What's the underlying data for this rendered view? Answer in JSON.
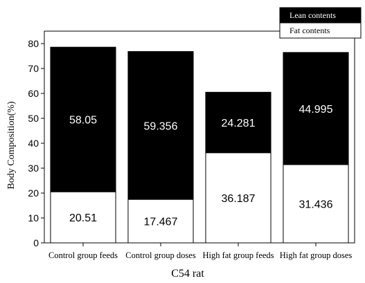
{
  "chart_data": {
    "type": "bar",
    "stacked": true,
    "categories": [
      "Control group feeds",
      "Control group doses",
      "High fat group feeds",
      "High fat group doses"
    ],
    "series": [
      {
        "name": "Fat contents",
        "values": [
          20.51,
          17.467,
          36.187,
          31.436
        ],
        "labels": [
          "20.51",
          "17.467",
          "36.187",
          "31.436"
        ],
        "color": "#ffffff"
      },
      {
        "name": "Lean contents",
        "values": [
          58.05,
          59.356,
          24.281,
          44.995
        ],
        "labels": [
          "58.05",
          "59.356",
          "24.281",
          "44.995"
        ],
        "color": "#000000"
      }
    ],
    "xlabel": "C54 rat",
    "ylabel": "Body Composition(%)",
    "ylim": [
      0,
      85
    ],
    "yticks": [
      "0",
      "10",
      "20",
      "30",
      "40",
      "50",
      "60",
      "70",
      "80"
    ],
    "grid": false,
    "legend_position": "top-right",
    "legend_order": [
      "Lean contents",
      "Fat contents"
    ]
  }
}
